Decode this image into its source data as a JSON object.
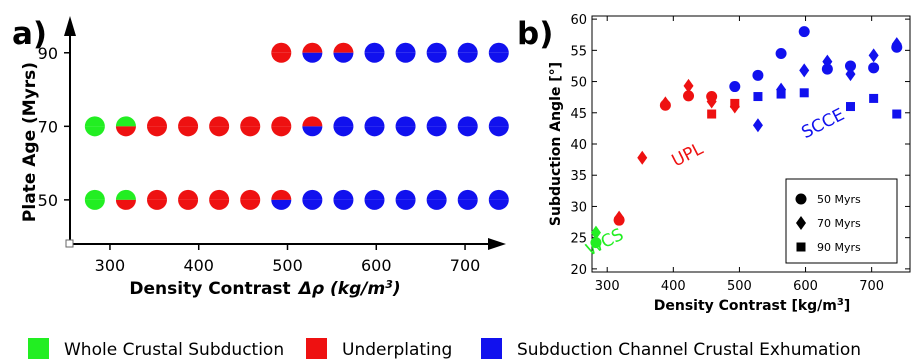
{
  "legend": [
    {
      "label": "Whole Crustal Subduction",
      "color": "#22ee22"
    },
    {
      "label": "Underplating",
      "color": "#ee1111"
    },
    {
      "label": "Subduction Channel Crustal Exhumation",
      "color": "#1111ee"
    }
  ],
  "chart_data": [
    {
      "panel_label": "a)",
      "type": "scatter",
      "xlabel": "Density Contrast",
      "xlabel_symbol": "Δρ",
      "xlabel_unit": "(kg/m",
      "xlabel_unit_exp": "3",
      "xlabel_unit_close": ")",
      "ylabel": "Plate Age (Myrs)",
      "xlim": [
        255,
        745
      ],
      "ylim": [
        38,
        100
      ],
      "xticks": [
        300,
        400,
        500,
        600,
        700
      ],
      "yticks": [
        50,
        70,
        90
      ],
      "grid": false,
      "colors": {
        "WCS": "#22ee22",
        "UPL": "#ee1111",
        "SCCE": "#1111ee"
      },
      "points": [
        {
          "x": 283,
          "y": 50,
          "top": "WCS",
          "bottom": "WCS"
        },
        {
          "x": 318,
          "y": 50,
          "top": "WCS",
          "bottom": "UPL"
        },
        {
          "x": 353,
          "y": 50,
          "top": "UPL",
          "bottom": "UPL"
        },
        {
          "x": 388,
          "y": 50,
          "top": "UPL",
          "bottom": "UPL"
        },
        {
          "x": 423,
          "y": 50,
          "top": "UPL",
          "bottom": "UPL"
        },
        {
          "x": 458,
          "y": 50,
          "top": "UPL",
          "bottom": "UPL"
        },
        {
          "x": 493,
          "y": 50,
          "top": "UPL",
          "bottom": "SCCE"
        },
        {
          "x": 528,
          "y": 50,
          "top": "SCCE",
          "bottom": "SCCE"
        },
        {
          "x": 563,
          "y": 50,
          "top": "SCCE",
          "bottom": "SCCE"
        },
        {
          "x": 598,
          "y": 50,
          "top": "SCCE",
          "bottom": "SCCE"
        },
        {
          "x": 633,
          "y": 50,
          "top": "SCCE",
          "bottom": "SCCE"
        },
        {
          "x": 668,
          "y": 50,
          "top": "SCCE",
          "bottom": "SCCE"
        },
        {
          "x": 703,
          "y": 50,
          "top": "SCCE",
          "bottom": "SCCE"
        },
        {
          "x": 738,
          "y": 50,
          "top": "SCCE",
          "bottom": "SCCE"
        },
        {
          "x": 283,
          "y": 70,
          "top": "WCS",
          "bottom": "WCS"
        },
        {
          "x": 318,
          "y": 70,
          "top": "WCS",
          "bottom": "UPL"
        },
        {
          "x": 353,
          "y": 70,
          "top": "UPL",
          "bottom": "UPL"
        },
        {
          "x": 388,
          "y": 70,
          "top": "UPL",
          "bottom": "UPL"
        },
        {
          "x": 423,
          "y": 70,
          "top": "UPL",
          "bottom": "UPL"
        },
        {
          "x": 458,
          "y": 70,
          "top": "UPL",
          "bottom": "UPL"
        },
        {
          "x": 493,
          "y": 70,
          "top": "UPL",
          "bottom": "UPL"
        },
        {
          "x": 528,
          "y": 70,
          "top": "UPL",
          "bottom": "SCCE"
        },
        {
          "x": 563,
          "y": 70,
          "top": "SCCE",
          "bottom": "SCCE"
        },
        {
          "x": 598,
          "y": 70,
          "top": "SCCE",
          "bottom": "SCCE"
        },
        {
          "x": 633,
          "y": 70,
          "top": "SCCE",
          "bottom": "SCCE"
        },
        {
          "x": 668,
          "y": 70,
          "top": "SCCE",
          "bottom": "SCCE"
        },
        {
          "x": 703,
          "y": 70,
          "top": "SCCE",
          "bottom": "SCCE"
        },
        {
          "x": 738,
          "y": 70,
          "top": "SCCE",
          "bottom": "SCCE"
        },
        {
          "x": 493,
          "y": 90,
          "top": "UPL",
          "bottom": "UPL"
        },
        {
          "x": 528,
          "y": 90,
          "top": "UPL",
          "bottom": "SCCE"
        },
        {
          "x": 563,
          "y": 90,
          "top": "UPL",
          "bottom": "SCCE"
        },
        {
          "x": 598,
          "y": 90,
          "top": "SCCE",
          "bottom": "SCCE"
        },
        {
          "x": 633,
          "y": 90,
          "top": "SCCE",
          "bottom": "SCCE"
        },
        {
          "x": 668,
          "y": 90,
          "top": "SCCE",
          "bottom": "SCCE"
        },
        {
          "x": 703,
          "y": 90,
          "top": "SCCE",
          "bottom": "SCCE"
        },
        {
          "x": 738,
          "y": 90,
          "top": "SCCE",
          "bottom": "SCCE"
        }
      ]
    },
    {
      "panel_label": "b)",
      "type": "scatter",
      "xlabel": "Density Contrast [kg/m",
      "xlabel_exp": "3",
      "xlabel_close": "]",
      "ylabel": "Subduction Angle [°]",
      "xlim": [
        277,
        758
      ],
      "ylim": [
        19.5,
        60.5
      ],
      "xticks": [
        300,
        400,
        500,
        600,
        700
      ],
      "yticks": [
        20,
        25,
        30,
        35,
        40,
        45,
        50,
        55,
        60
      ],
      "grid": false,
      "legend_position": "lower-right",
      "regime_labels": [
        {
          "text": "WCS",
          "color": "#22ee22",
          "x": 300,
          "y": 23.5
        },
        {
          "text": "UPL",
          "color": "#ee1111",
          "x": 425,
          "y": 37.5
        },
        {
          "text": "SCCE",
          "color": "#1111ee",
          "x": 630,
          "y": 42.5
        }
      ],
      "series": [
        {
          "name": "50 Myrs",
          "marker": "circle",
          "points": [
            {
              "x": 283,
              "y": 24.2,
              "c": "WCS"
            },
            {
              "x": 318,
              "y": 27.8,
              "c": "UPL"
            },
            {
              "x": 388,
              "y": 46.2,
              "c": "UPL"
            },
            {
              "x": 423,
              "y": 47.7,
              "c": "UPL"
            },
            {
              "x": 458,
              "y": 47.6,
              "c": "UPL"
            },
            {
              "x": 493,
              "y": 49.2,
              "c": "SCCE"
            },
            {
              "x": 528,
              "y": 51.0,
              "c": "SCCE"
            },
            {
              "x": 563,
              "y": 54.5,
              "c": "SCCE"
            },
            {
              "x": 598,
              "y": 58.0,
              "c": "SCCE"
            },
            {
              "x": 633,
              "y": 52.0,
              "c": "SCCE"
            },
            {
              "x": 668,
              "y": 52.5,
              "c": "SCCE"
            },
            {
              "x": 703,
              "y": 52.2,
              "c": "SCCE"
            },
            {
              "x": 738,
              "y": 55.5,
              "c": "SCCE"
            }
          ]
        },
        {
          "name": "70 Myrs",
          "marker": "diamond",
          "points": [
            {
              "x": 283,
              "y": 25.8,
              "c": "WCS"
            },
            {
              "x": 318,
              "y": 28.2,
              "c": "UPL"
            },
            {
              "x": 353,
              "y": 37.8,
              "c": "UPL"
            },
            {
              "x": 388,
              "y": 46.5,
              "c": "UPL"
            },
            {
              "x": 423,
              "y": 49.3,
              "c": "UPL"
            },
            {
              "x": 458,
              "y": 46.8,
              "c": "UPL"
            },
            {
              "x": 493,
              "y": 46.0,
              "c": "UPL"
            },
            {
              "x": 528,
              "y": 43.0,
              "c": "SCCE"
            },
            {
              "x": 563,
              "y": 48.7,
              "c": "SCCE"
            },
            {
              "x": 598,
              "y": 51.8,
              "c": "SCCE"
            },
            {
              "x": 633,
              "y": 53.2,
              "c": "SCCE"
            },
            {
              "x": 668,
              "y": 51.2,
              "c": "SCCE"
            },
            {
              "x": 703,
              "y": 54.2,
              "c": "SCCE"
            },
            {
              "x": 738,
              "y": 56.0,
              "c": "SCCE"
            }
          ]
        },
        {
          "name": "90 Myrs",
          "marker": "square",
          "points": [
            {
              "x": 458,
              "y": 44.8,
              "c": "UPL"
            },
            {
              "x": 493,
              "y": 46.5,
              "c": "UPL"
            },
            {
              "x": 528,
              "y": 47.6,
              "c": "SCCE"
            },
            {
              "x": 563,
              "y": 48.0,
              "c": "SCCE"
            },
            {
              "x": 598,
              "y": 48.2,
              "c": "SCCE"
            },
            {
              "x": 668,
              "y": 46.0,
              "c": "SCCE"
            },
            {
              "x": 703,
              "y": 47.3,
              "c": "SCCE"
            },
            {
              "x": 738,
              "y": 44.8,
              "c": "SCCE"
            }
          ]
        }
      ]
    }
  ]
}
